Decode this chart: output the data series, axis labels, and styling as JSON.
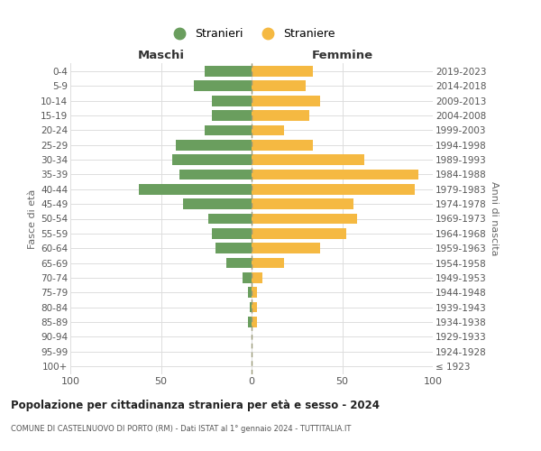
{
  "age_groups": [
    "100+",
    "95-99",
    "90-94",
    "85-89",
    "80-84",
    "75-79",
    "70-74",
    "65-69",
    "60-64",
    "55-59",
    "50-54",
    "45-49",
    "40-44",
    "35-39",
    "30-34",
    "25-29",
    "20-24",
    "15-19",
    "10-14",
    "5-9",
    "0-4"
  ],
  "birth_years": [
    "≤ 1923",
    "1924-1928",
    "1929-1933",
    "1934-1938",
    "1939-1943",
    "1944-1948",
    "1949-1953",
    "1954-1958",
    "1959-1963",
    "1964-1968",
    "1969-1973",
    "1974-1978",
    "1979-1983",
    "1984-1988",
    "1989-1993",
    "1994-1998",
    "1999-2003",
    "2004-2008",
    "2009-2013",
    "2014-2018",
    "2019-2023"
  ],
  "maschi": [
    0,
    0,
    0,
    2,
    1,
    2,
    5,
    14,
    20,
    22,
    24,
    38,
    62,
    40,
    44,
    42,
    26,
    22,
    22,
    32,
    26
  ],
  "femmine": [
    0,
    0,
    0,
    3,
    3,
    3,
    6,
    18,
    38,
    52,
    58,
    56,
    90,
    92,
    62,
    34,
    18,
    32,
    38,
    30,
    34
  ],
  "color_maschi": "#6a9e5e",
  "color_femmine": "#f5b942",
  "title": "Popolazione per cittadinanza straniera per età e sesso - 2024",
  "subtitle": "COMUNE DI CASTELNUOVO DI PORTO (RM) - Dati ISTAT al 1° gennaio 2024 - TUTTITALIA.IT",
  "legend_maschi": "Stranieri",
  "legend_femmine": "Straniere",
  "label_maschi": "Maschi",
  "label_femmine": "Femmine",
  "ylabel_left": "Fasce di età",
  "ylabel_right": "Anni di nascita",
  "xlim": 100,
  "grid_color": "#dddddd"
}
